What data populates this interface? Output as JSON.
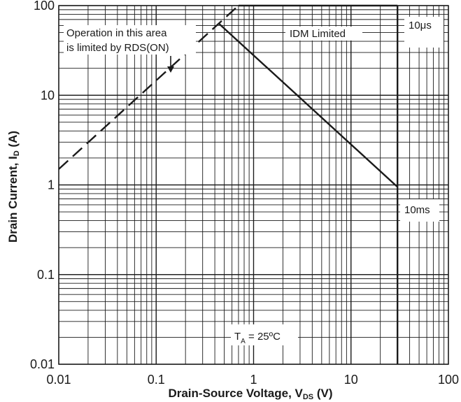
{
  "chart_data": {
    "type": "line",
    "xscale": "log",
    "yscale": "log",
    "xlim": [
      0.01,
      100
    ],
    "ylim": [
      0.01,
      100
    ],
    "grid": true,
    "xlabel_main": "Drain-Source Voltage, V",
    "xlabel_sub": "DS",
    "xlabel_tail": " (V)",
    "ylabel_main": "Drain Current, I",
    "ylabel_sub": "D",
    "ylabel_tail": " (A)",
    "x_ticks": [
      {
        "value": 0.01,
        "label": "0.01"
      },
      {
        "value": 0.1,
        "label": "0.1"
      },
      {
        "value": 1,
        "label": "1"
      },
      {
        "value": 10,
        "label": "10"
      },
      {
        "value": 100,
        "label": "100"
      }
    ],
    "y_ticks": [
      {
        "value": 0.01,
        "label": "0.01"
      },
      {
        "value": 0.1,
        "label": "0.1"
      },
      {
        "value": 1,
        "label": "1"
      },
      {
        "value": 10,
        "label": "10"
      },
      {
        "value": 100,
        "label": "100"
      }
    ],
    "series": [
      {
        "name": "RDS(ON) limit",
        "style": "dashed",
        "points": [
          [
            0.01,
            1.5
          ],
          [
            0.7,
            100
          ]
        ]
      },
      {
        "name": "IDM Limited",
        "style": "solid",
        "points": [
          [
            0.7,
            100
          ],
          [
            30,
            100
          ]
        ]
      },
      {
        "name": "10μs",
        "style": "solid",
        "points": [
          [
            30,
            100
          ],
          [
            30,
            0.01
          ]
        ]
      },
      {
        "name": "10ms",
        "style": "solid",
        "points": [
          [
            0.44,
            63
          ],
          [
            30,
            0.95
          ]
        ]
      }
    ],
    "annotations": {
      "rds_line1": "Operation in this area",
      "rds_line2": "is limited by RDS(ON)",
      "idm": "IDM Limited",
      "t10us": "10μs",
      "t10ms": "10ms",
      "ta_main": "T",
      "ta_sub": "A",
      "ta_tail": " = 25ºC"
    },
    "colors": {
      "line": "#1a1a1a",
      "grid": "#1a1a1a",
      "background": "#ffffff"
    }
  }
}
